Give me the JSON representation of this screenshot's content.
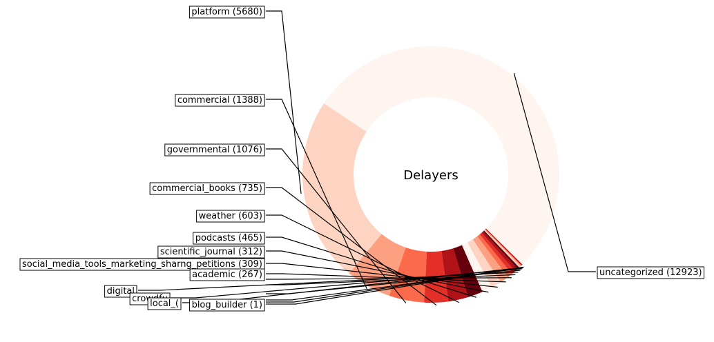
{
  "chart_data": {
    "type": "pie",
    "variant": "donut",
    "center_label": "Delayers",
    "colormap": "Reds",
    "slices": [
      {
        "label": "uncategorized (12923)",
        "value": 12923,
        "color": "#fff5f0"
      },
      {
        "label": "platform (5680)",
        "value": 5680,
        "color": "#fdd4c2"
      },
      {
        "label": "commercial (1388)",
        "value": 1388,
        "color": "#fca082"
      },
      {
        "label": "governmental (1076)",
        "value": 1076,
        "color": "#fb6a4a"
      },
      {
        "label": "commercial_books (735)",
        "value": 735,
        "color": "#e32f27"
      },
      {
        "label": "weather (603)",
        "value": 603,
        "color": "#b11218"
      },
      {
        "label": "podcasts (465)",
        "value": 465,
        "color": "#67000d"
      },
      {
        "label": "scientific_journal (312)",
        "value": 312,
        "color": "#fff5f0"
      },
      {
        "label": "social_media_tools_marketing_sharng_petitions (309)",
        "value": 309,
        "color": "#fdd4c2"
      },
      {
        "label": "academic (267)",
        "value": 267,
        "color": "#fca082"
      },
      {
        "label": "",
        "value": 155,
        "color": "#fb6a4a"
      },
      {
        "label": "",
        "value": 124,
        "color": "#e32f27"
      },
      {
        "label": "digital",
        "value": 100,
        "color": "#b11218"
      },
      {
        "label": "",
        "value": 70,
        "color": "#67000d"
      },
      {
        "label": "crowdfu",
        "value": 50,
        "color": "#fdd4c2"
      },
      {
        "label": "",
        "value": 30,
        "color": "#fca082"
      },
      {
        "label": "local_(",
        "value": 15,
        "color": "#fb6a4a"
      },
      {
        "label": "",
        "value": 5,
        "color": "#e32f27"
      },
      {
        "label": "blog_builder (1)",
        "value": 1,
        "color": "#b11218"
      }
    ]
  }
}
